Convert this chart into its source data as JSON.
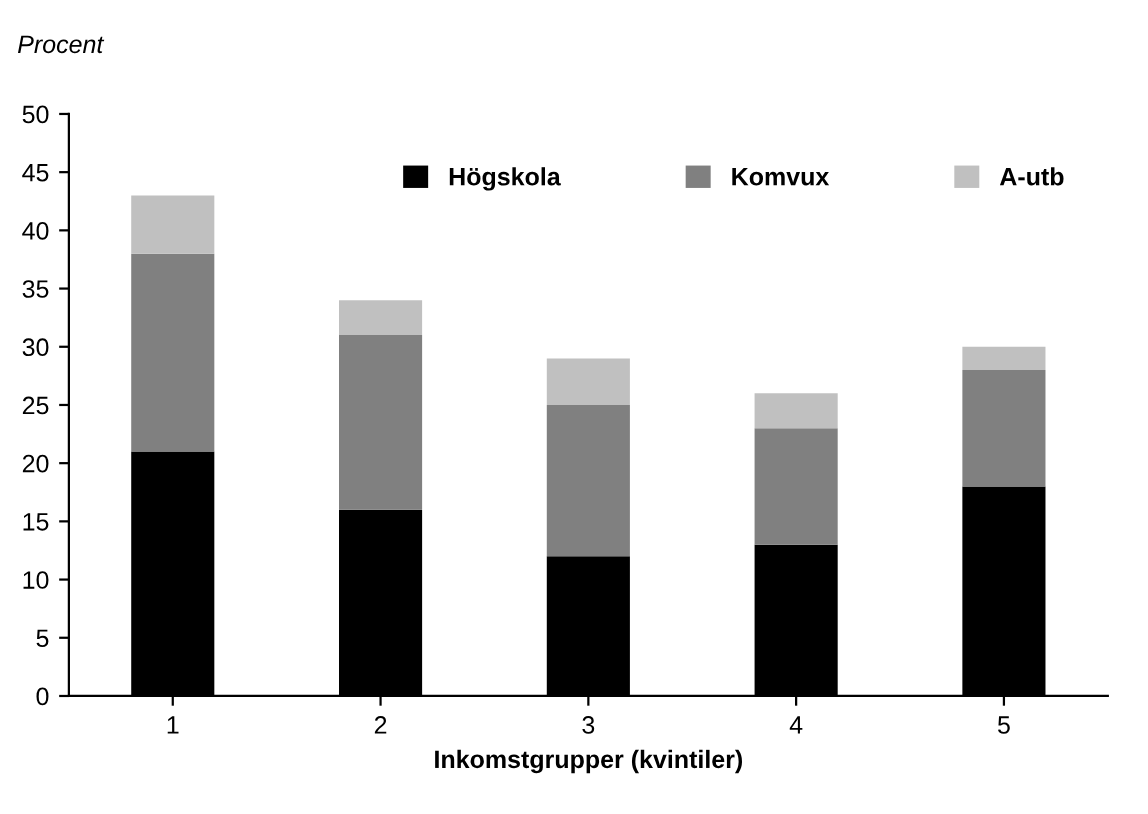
{
  "chart_data": {
    "type": "bar",
    "stacked": true,
    "ylabel": "Procent",
    "xlabel": "Inkomstgrupper (kvintiler)",
    "categories": [
      "1",
      "2",
      "3",
      "4",
      "5"
    ],
    "series": [
      {
        "name": "Högskola",
        "color": "#000000",
        "values": [
          21,
          16,
          12,
          13,
          18
        ]
      },
      {
        "name": "Komvux",
        "color": "#808080",
        "values": [
          17,
          15,
          13,
          10,
          10
        ]
      },
      {
        "name": "A-utb",
        "color": "#c0c0c0",
        "values": [
          5,
          3,
          4,
          3,
          2
        ]
      }
    ],
    "ylim": [
      0,
      50
    ],
    "yticks": [
      0,
      5,
      10,
      15,
      20,
      25,
      30,
      35,
      40,
      45,
      50
    ],
    "grid": false,
    "legend": "top right"
  }
}
